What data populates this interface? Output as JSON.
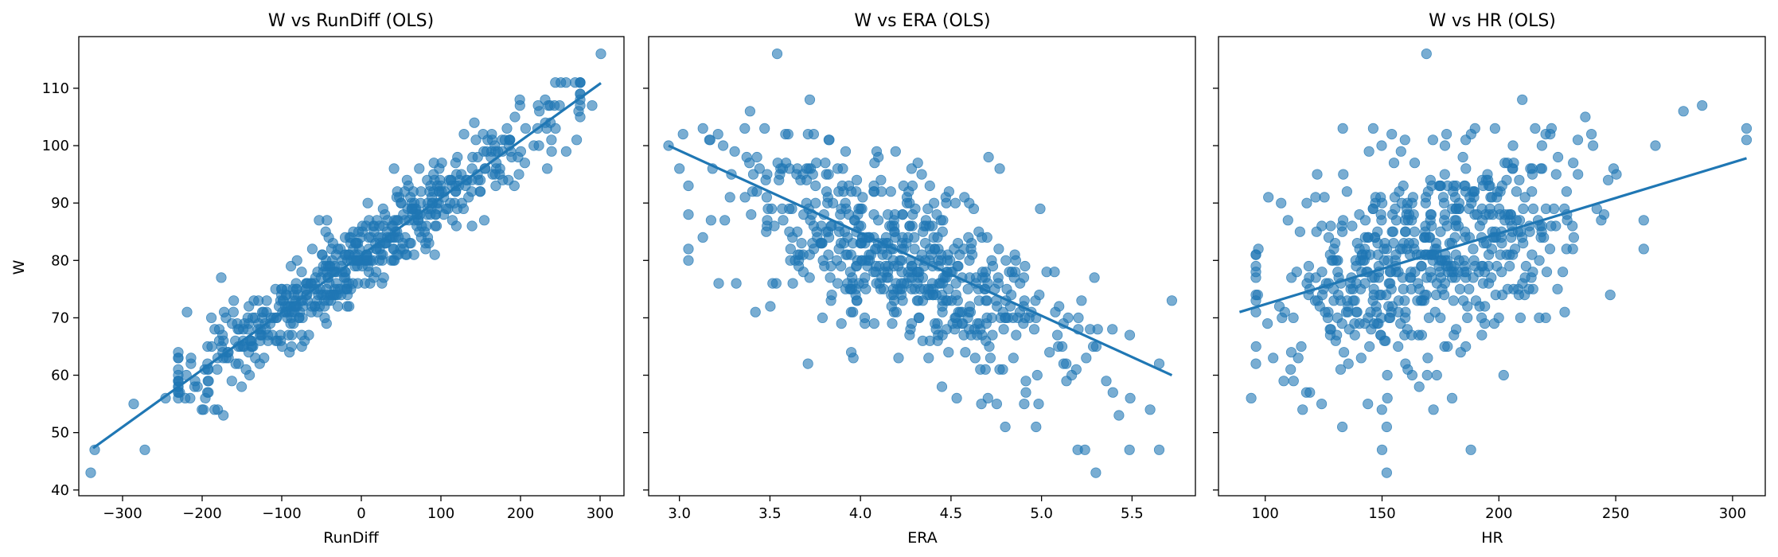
{
  "colors": {
    "point": "#1f77b4",
    "line": "#1f77b4"
  },
  "chart_data": [
    {
      "type": "scatter",
      "title": "W vs RunDiff (OLS)",
      "xlabel": "RunDiff",
      "ylabel": "W",
      "xlim": [
        -355,
        330
      ],
      "ylim": [
        39,
        119
      ],
      "xticks": [
        -300,
        -200,
        -100,
        0,
        100,
        200,
        300
      ],
      "xtick_labels": [
        "−300",
        "−200",
        "−100",
        "0",
        "100",
        "200",
        "300"
      ],
      "yticks": [
        40,
        50,
        60,
        70,
        80,
        90,
        100,
        110
      ],
      "ytick_labels": [
        "40",
        "50",
        "60",
        "70",
        "80",
        "90",
        "100",
        "110"
      ],
      "fit_line": {
        "x": [
          -337,
          301
        ],
        "y": [
          47.3,
          110.9
        ]
      },
      "outliers": {
        "x": [
          -340,
          -335,
          -286,
          -272,
          -246,
          -219,
          -214,
          -196,
          -188,
          -176,
          129,
          193,
          231,
          244,
          273,
          290,
          301
        ],
        "y": [
          43,
          47,
          55,
          47,
          56,
          71,
          63,
          56,
          65,
          77,
          102,
          105,
          108,
          103,
          106,
          107,
          116
        ]
      },
      "cloud": {
        "mode": "linear",
        "count": 560,
        "seed": 11,
        "xcenter": -5,
        "xspread": 120,
        "xmin": -230,
        "xmax": 275,
        "slope": 0.0996,
        "intercept": 80.9,
        "noise": 3.6,
        "ymin": 47,
        "ymax": 111
      }
    },
    {
      "type": "scatter",
      "title": "W vs ERA (OLS)",
      "xlabel": "ERA",
      "ylabel": "",
      "xlim": [
        2.83,
        5.85
      ],
      "ylim": [
        39,
        119
      ],
      "xticks": [
        3.0,
        3.5,
        4.0,
        4.5,
        5.0,
        5.5
      ],
      "xtick_labels": [
        "3.0",
        "3.5",
        "4.0",
        "4.5",
        "5.0",
        "5.5"
      ],
      "yticks": [
        40,
        50,
        60,
        70,
        80,
        90,
        100,
        110
      ],
      "ytick_labels": [
        "",
        "",
        "",
        "",
        "",
        "",
        "",
        ""
      ],
      "fit_line": {
        "x": [
          2.94,
          5.72
        ],
        "y": [
          100.0,
          60.0
        ]
      },
      "outliers": {
        "x": [
          2.94,
          3.0,
          3.02,
          3.13,
          3.17,
          3.54,
          3.39,
          3.71,
          3.42,
          3.72,
          5.2,
          5.24,
          5.3,
          5.6,
          5.65,
          5.72,
          4.8,
          4.97,
          5.49
        ],
        "y": [
          100,
          96,
          102,
          103,
          101,
          116,
          106,
          62,
          71,
          108,
          47,
          47,
          43,
          54,
          62,
          73,
          51,
          51,
          56
        ]
      },
      "cloud": {
        "mode": "linear",
        "count": 560,
        "seed": 23,
        "xcenter": 4.2,
        "xspread": 0.45,
        "xmin": 3.05,
        "xmax": 5.65,
        "slope": -14.4,
        "intercept": 140.5,
        "noise": 7.5,
        "ymin": 46,
        "ymax": 110
      }
    },
    {
      "type": "scatter",
      "title": "W vs HR (OLS)",
      "xlabel": "HR",
      "ylabel": "",
      "xlim": [
        80,
        314
      ],
      "ylim": [
        39,
        119
      ],
      "xticks": [
        100,
        150,
        200,
        250,
        300
      ],
      "xtick_labels": [
        "100",
        "150",
        "200",
        "250",
        "300"
      ],
      "yticks": [
        40,
        50,
        60,
        70,
        80,
        90,
        100,
        110
      ],
      "ytick_labels": [
        "",
        "",
        "",
        "",
        "",
        "",
        "",
        ""
      ],
      "fit_line": {
        "x": [
          89,
          306
        ],
        "y": [
          71.0,
          97.8
        ]
      },
      "outliers": {
        "x": [
          169,
          152,
          188,
          150,
          96,
          94,
          306,
          306,
          287,
          279,
          267,
          237,
          210,
          116,
          172,
          133,
          152
        ],
        "y": [
          116,
          43,
          47,
          47,
          62,
          56,
          103,
          101,
          107,
          106,
          100,
          105,
          108,
          54,
          54,
          51,
          51
        ]
      },
      "cloud": {
        "mode": "linear",
        "count": 560,
        "seed": 37,
        "xcenter": 172,
        "xspread": 33,
        "xmin": 96,
        "xmax": 262,
        "slope": 0.1235,
        "intercept": 60.0,
        "noise": 9.0,
        "ymin": 51,
        "ymax": 103
      }
    }
  ]
}
